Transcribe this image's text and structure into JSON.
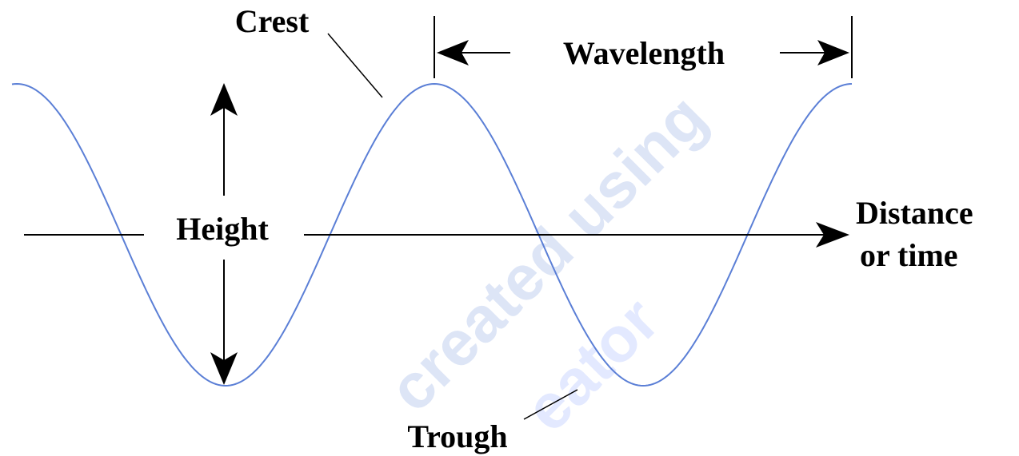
{
  "labels": {
    "crest": "Crest",
    "wavelength": "Wavelength",
    "height": "Height",
    "distance": "Distance",
    "or_time": "or time",
    "trough": "Trough"
  },
  "watermark": [
    "created using",
    "eator"
  ]
}
